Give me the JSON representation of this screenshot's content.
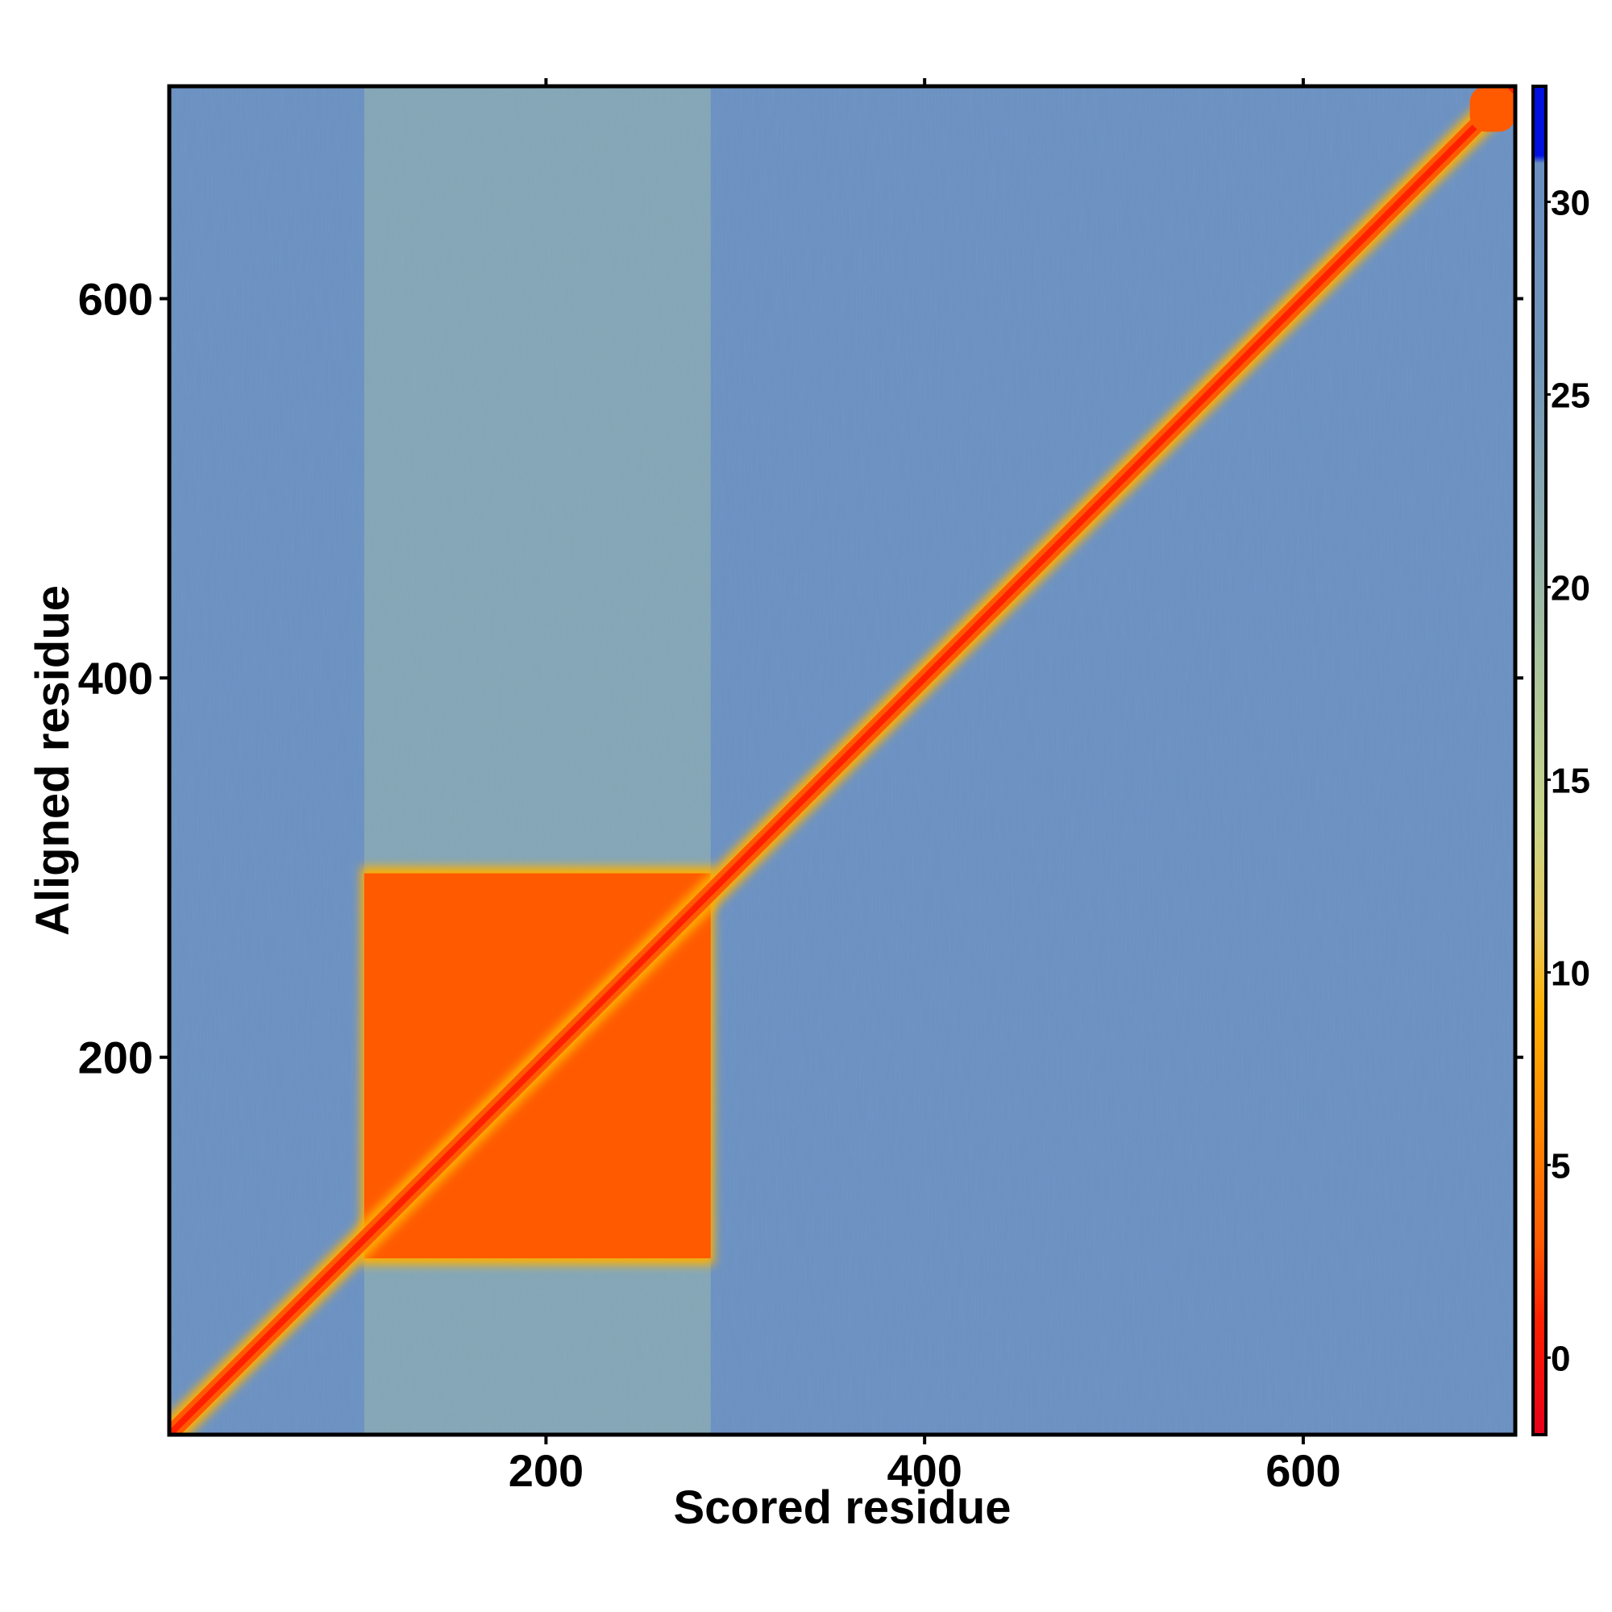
{
  "chart_data": {
    "type": "heatmap",
    "title": "",
    "xlabel": "Scored residue",
    "ylabel": "Aligned residue",
    "xlim": [
      1,
      712
    ],
    "ylim": [
      1,
      712
    ],
    "x_ticks": [
      200,
      400,
      600
    ],
    "y_ticks": [
      200,
      400,
      600
    ],
    "grid": false,
    "colorbar": {
      "range": [
        -2,
        33
      ],
      "ticks": [
        0,
        5,
        10,
        15,
        20,
        25,
        30
      ],
      "placement": "right",
      "stops": [
        {
          "value": -2,
          "color": "#e8001a"
        },
        {
          "value": 1,
          "color": "#ff2000"
        },
        {
          "value": 3,
          "color": "#ff5a00"
        },
        {
          "value": 6,
          "color": "#ff8800"
        },
        {
          "value": 9,
          "color": "#ffb000"
        },
        {
          "value": 11,
          "color": "#e8c85a"
        },
        {
          "value": 14,
          "color": "#c8d48a"
        },
        {
          "value": 18,
          "color": "#a9c49c"
        },
        {
          "value": 22,
          "color": "#8aaab0"
        },
        {
          "value": 26,
          "color": "#6f94b8"
        },
        {
          "value": 30,
          "color": "#6b90c0"
        },
        {
          "value": 31,
          "color": "#6b90c0"
        },
        {
          "value": 31.2,
          "color": "#0010e0"
        },
        {
          "value": 33,
          "color": "#0010e0"
        }
      ]
    },
    "regions": [
      {
        "name": "background",
        "x": [
          1,
          712
        ],
        "y": [
          1,
          712
        ],
        "value": 27
      },
      {
        "name": "domain-column-band",
        "x": [
          104,
          287
        ],
        "y": [
          1,
          712
        ],
        "value": 22
      },
      {
        "name": "confident-block",
        "x": [
          104,
          287
        ],
        "y": [
          94,
          297
        ],
        "value": 2
      },
      {
        "name": "diagonal",
        "x": [
          1,
          712
        ],
        "y": [
          1,
          712
        ],
        "value": 1
      }
    ]
  }
}
